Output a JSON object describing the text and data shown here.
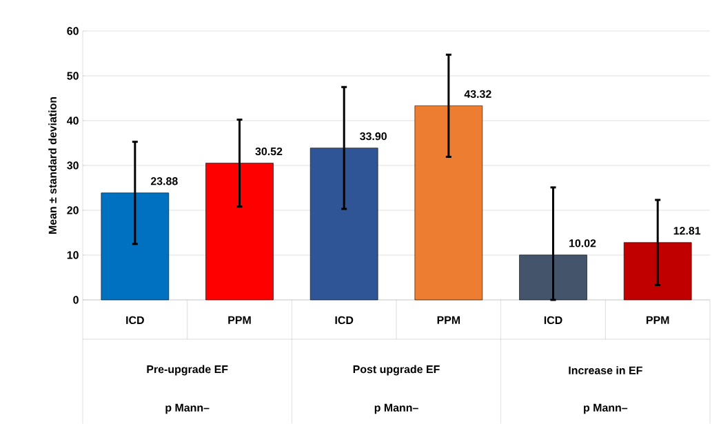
{
  "chart_data": {
    "type": "bar",
    "ylabel": "Mean ± standard deviation",
    "categories": [
      "ICD",
      "PPM",
      "ICD",
      "PPM",
      "ICD",
      "PPM"
    ],
    "values": [
      23.88,
      30.52,
      33.9,
      43.32,
      10.02,
      12.81
    ],
    "value_labels": [
      "23.88",
      "30.52",
      "33.90",
      "43.32",
      "10.02",
      "12.81"
    ],
    "colors": [
      "#0070c0",
      "#ff0000",
      "#2f5597",
      "#ed7d31",
      "#44546a",
      "#c00000"
    ],
    "errors": [
      11.4,
      9.7,
      13.6,
      11.4,
      [
        0,
        25.1
      ],
      9.5
    ],
    "ylim": [
      0,
      60
    ],
    "yticks": [
      0,
      10,
      20,
      30,
      40,
      50,
      60
    ],
    "grid": "y",
    "annotations": [
      "Pre-upgrade EF",
      "Post upgrade EF",
      "Increase in EF",
      "p Mann–",
      "p Mann–",
      "p Mann–"
    ]
  }
}
